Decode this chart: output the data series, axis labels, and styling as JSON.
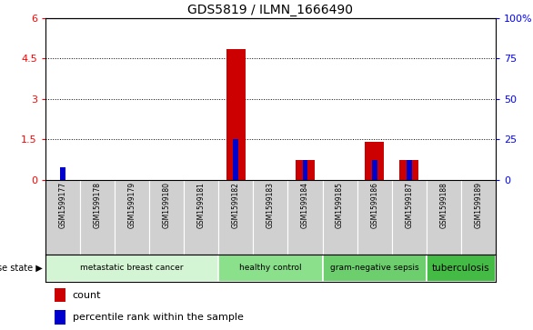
{
  "title": "GDS5819 / ILMN_1666490",
  "samples": [
    "GSM1599177",
    "GSM1599178",
    "GSM1599179",
    "GSM1599180",
    "GSM1599181",
    "GSM1599182",
    "GSM1599183",
    "GSM1599184",
    "GSM1599185",
    "GSM1599186",
    "GSM1599187",
    "GSM1599188",
    "GSM1599189"
  ],
  "red_values": [
    0.0,
    0.0,
    0.0,
    0.0,
    0.0,
    4.85,
    0.0,
    0.75,
    0.0,
    1.4,
    0.75,
    0.0,
    0.0
  ],
  "blue_values_pct": [
    8.0,
    0.0,
    0.0,
    0.0,
    0.0,
    25.0,
    0.0,
    12.0,
    0.0,
    12.0,
    12.0,
    0.0,
    0.0
  ],
  "ylim_left": [
    0,
    6
  ],
  "ylim_right": [
    0,
    100
  ],
  "yticks_left": [
    0,
    1.5,
    3.0,
    4.5,
    6.0
  ],
  "ytick_labels_left": [
    "0",
    "1.5",
    "3",
    "4.5",
    "6"
  ],
  "yticks_right": [
    0,
    25,
    50,
    75,
    100
  ],
  "ytick_labels_right": [
    "0",
    "25",
    "50",
    "75",
    "100%"
  ],
  "groups": [
    {
      "label": "metastatic breast cancer",
      "start": 0,
      "end": 5,
      "color": "#d4f5d4"
    },
    {
      "label": "healthy control",
      "start": 5,
      "end": 8,
      "color": "#8be08b"
    },
    {
      "label": "gram-negative sepsis",
      "start": 8,
      "end": 11,
      "color": "#6dce6d"
    },
    {
      "label": "tuberculosis",
      "start": 11,
      "end": 13,
      "color": "#44bb44"
    }
  ],
  "red_bar_width": 0.55,
  "blue_bar_width": 0.15,
  "red_color": "#cc0000",
  "blue_color": "#0000cc",
  "legend_red": "count",
  "legend_blue": "percentile rank within the sample",
  "disease_state_label": "disease state",
  "sample_cell_bg": "#d0d0d0",
  "plot_bg": "#ffffff"
}
